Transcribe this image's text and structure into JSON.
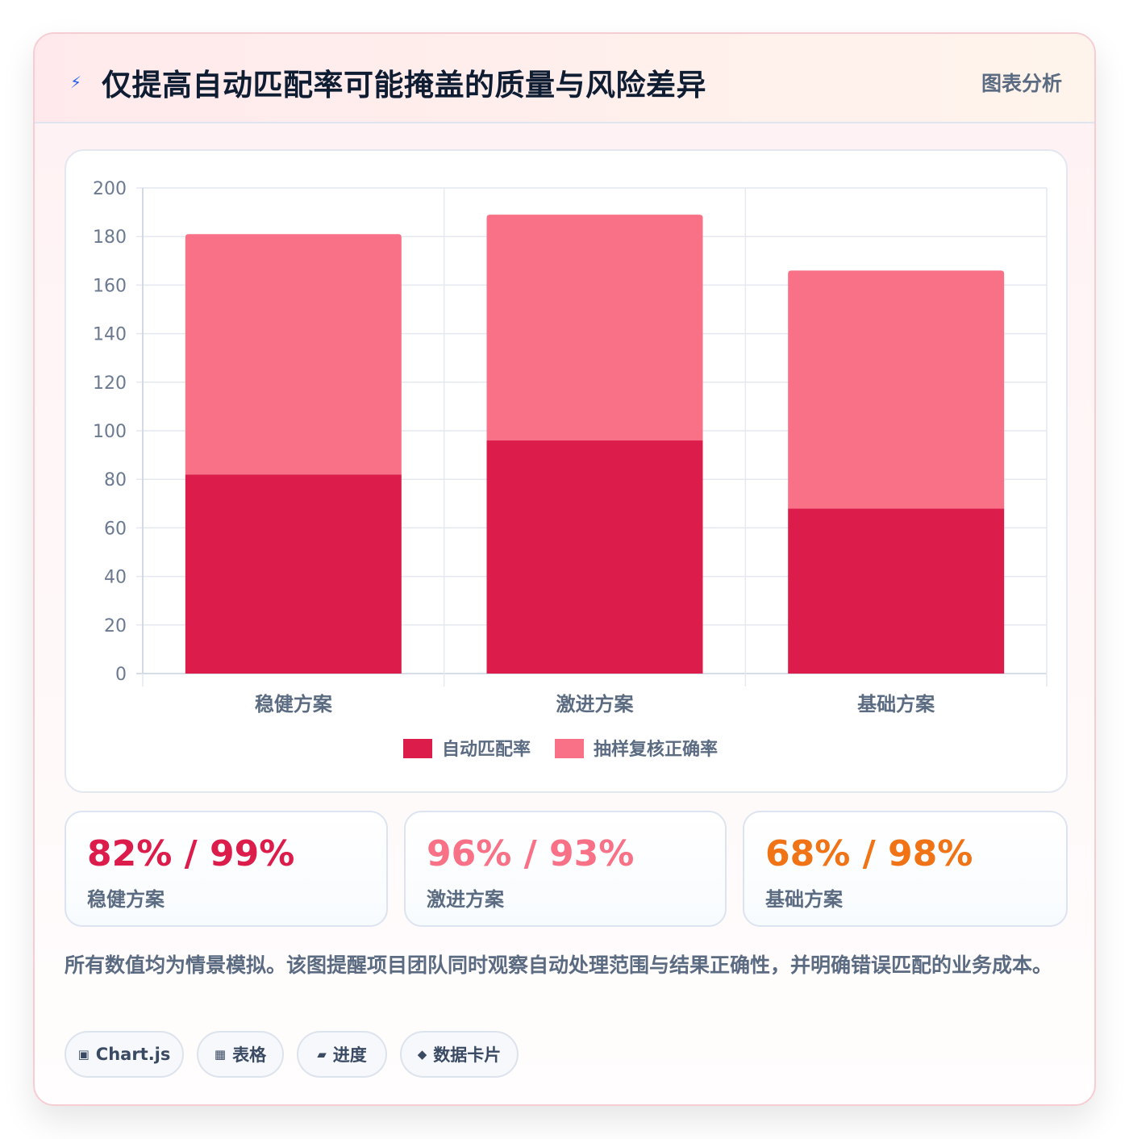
{
  "header": {
    "title": "仅提高自动匹配率可能掩盖的质量与风险差异",
    "tag": "图表分析",
    "icon": "bolt-icon"
  },
  "chart_data": {
    "type": "bar",
    "stacked": true,
    "categories": [
      "稳健方案",
      "激进方案",
      "基础方案"
    ],
    "series": [
      {
        "name": "自动匹配率",
        "values": [
          82,
          96,
          68
        ],
        "color": "#dc1c4b"
      },
      {
        "name": "抽样复核正确率",
        "values": [
          99,
          93,
          98
        ],
        "color": "#f87186"
      }
    ],
    "ylim": [
      0,
      200
    ],
    "yticks": [
      0,
      20,
      40,
      60,
      80,
      100,
      120,
      140,
      160,
      180,
      200
    ],
    "grid": true,
    "legend": "bottom"
  },
  "stats": [
    {
      "value": "82% / 99%",
      "label": "稳健方案",
      "color": "#dc1c4b"
    },
    {
      "value": "96% / 93%",
      "label": "激进方案",
      "color": "#f87186"
    },
    {
      "value": "68% / 98%",
      "label": "基础方案",
      "color": "#f07316"
    }
  ],
  "note": "所有数值均为情景模拟。该图提醒项目团队同时观察自动处理范围与结果正确性，并明确错误匹配的业务成本。",
  "chips": [
    {
      "icon": "▣",
      "icon_name": "chart-icon",
      "label": "Chart.js"
    },
    {
      "icon": "▦",
      "icon_name": "table-icon",
      "label": "表格"
    },
    {
      "icon": "▰",
      "icon_name": "progress-icon",
      "label": "进度"
    },
    {
      "icon": "◆",
      "icon_name": "data-card-icon",
      "label": "数据卡片"
    }
  ]
}
